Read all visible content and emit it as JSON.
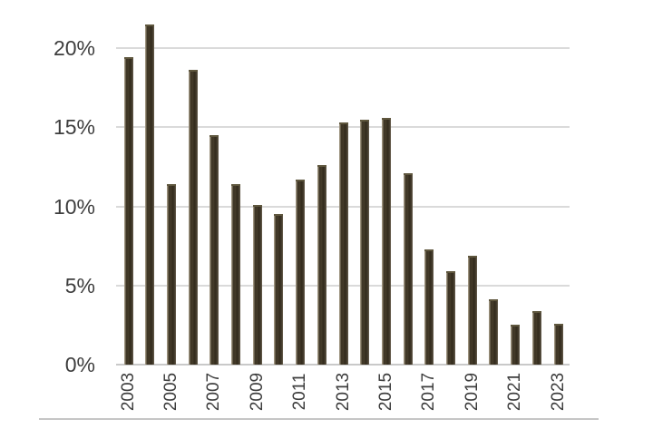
{
  "chart_data": {
    "type": "bar",
    "title": "",
    "xlabel": "",
    "ylabel": "",
    "categories": [
      "2003",
      "2004",
      "2005",
      "2006",
      "2007",
      "2008",
      "2009",
      "2010",
      "2011",
      "2012",
      "2013",
      "2014",
      "2015",
      "2016",
      "2017",
      "2018",
      "2019",
      "2020",
      "2021",
      "2022",
      "2023"
    ],
    "values": [
      19.4,
      21.5,
      11.4,
      18.6,
      14.5,
      11.4,
      10.1,
      9.5,
      11.7,
      12.6,
      15.3,
      15.5,
      15.6,
      12.1,
      7.3,
      5.9,
      6.9,
      4.1,
      2.5,
      3.4,
      2.6
    ],
    "unit": "%",
    "ylim": [
      0,
      22
    ],
    "ytick_values": [
      0,
      5,
      10,
      15,
      20
    ],
    "ytick_labels": [
      "0%",
      "5%",
      "10%",
      "15%",
      "20%"
    ],
    "xtick_labels": [
      "2003",
      "2005",
      "2007",
      "2009",
      "2011",
      "2013",
      "2015",
      "2017",
      "2019",
      "2021",
      "2023"
    ],
    "xtick_every": 2,
    "grid": true,
    "legend": false,
    "colors": {
      "bar": "#3d3526",
      "bar_edge_highlight": "#a89e8d",
      "gridline": "#dadada",
      "axis_line": "#c9c9c9",
      "tick_text": "#3d3d3d",
      "divider": "#c6c6c6",
      "background": "#ffffff"
    }
  }
}
